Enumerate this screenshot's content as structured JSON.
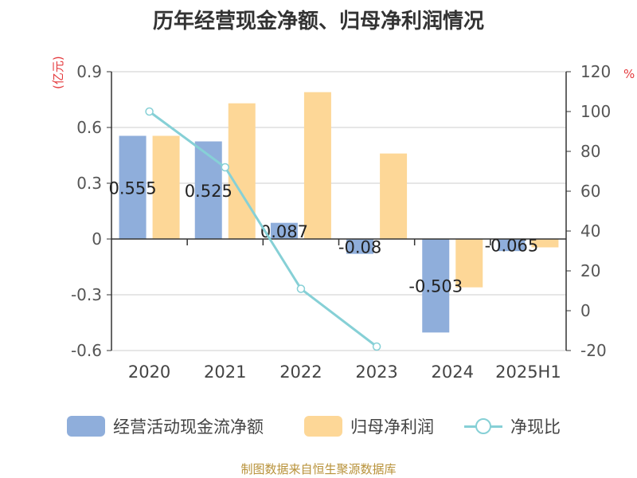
{
  "title": "历年经营现金净额、归母净利润情况",
  "unit_left": "(亿元)",
  "unit_right": "%",
  "source": "制图数据来自恒生聚源数据库",
  "colors": {
    "cash_bar": "#8faedb",
    "profit_bar": "#fdd797",
    "ratio_line": "#86d0d6",
    "unit_label": "#e4393c",
    "source": "#b8923a"
  },
  "chart_data": {
    "type": "bar",
    "categories": [
      "2020",
      "2021",
      "2022",
      "2023",
      "2024",
      "2025H1"
    ],
    "series": [
      {
        "name": "经营活动现金流净额",
        "type": "bar",
        "axis": "left",
        "values": [
          0.555,
          0.525,
          0.087,
          -0.08,
          -0.503,
          -0.065
        ],
        "labels": [
          "0.555",
          "0.525",
          "0.087",
          "-0.08",
          "-0.503",
          "-0.065"
        ]
      },
      {
        "name": "归母净利润",
        "type": "bar",
        "axis": "left",
        "values": [
          0.555,
          0.73,
          0.79,
          0.46,
          -0.26,
          -0.045
        ]
      },
      {
        "name": "净现比",
        "type": "line",
        "axis": "right",
        "values": [
          100,
          72,
          11,
          -18,
          null,
          null
        ]
      }
    ],
    "y_left": {
      "min": -0.6,
      "max": 0.9,
      "ticks": [
        "0.9",
        "0.6",
        "0.3",
        "0",
        "-0.3",
        "-0.6"
      ]
    },
    "y_right": {
      "min": -20,
      "max": 120,
      "ticks": [
        "120",
        "100",
        "80",
        "60",
        "40",
        "20",
        "0",
        "-20"
      ]
    },
    "grid": true,
    "legend_position": "bottom"
  }
}
